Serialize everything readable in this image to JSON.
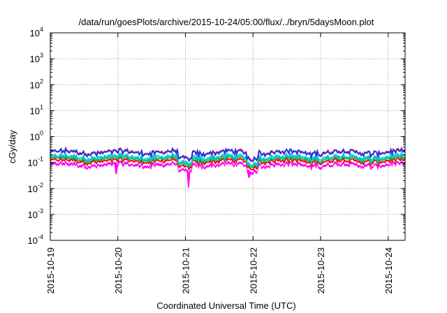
{
  "chart_data": {
    "type": "line",
    "title": "/data/run/goesPlots/archive/2015-10-24/05:00/flux/../bryn/5daysMoon.plot",
    "xlabel": "Coordinated Universal Time (UTC)",
    "ylabel": "cGy/day",
    "y_scale": "log",
    "ylim": [
      0.0001,
      10000
    ],
    "y_ticks": [
      {
        "base": "10",
        "exp": "4",
        "value": 10000
      },
      {
        "base": "10",
        "exp": "3",
        "value": 1000
      },
      {
        "base": "10",
        "exp": "2",
        "value": 100
      },
      {
        "base": "10",
        "exp": "1",
        "value": 10
      },
      {
        "base": "10",
        "exp": "0",
        "value": 1
      },
      {
        "base": "10",
        "exp": "-1",
        "value": 0.1
      },
      {
        "base": "10",
        "exp": "-2",
        "value": 0.01
      },
      {
        "base": "10",
        "exp": "-3",
        "value": 0.001
      },
      {
        "base": "10",
        "exp": "-4",
        "value": 0.0001
      }
    ],
    "x_ticks": [
      "2015-10-19",
      "2015-10-20",
      "2015-10-21",
      "2015-10-22",
      "2015-10-23",
      "2015-10-24"
    ],
    "xlim": [
      "2015-10-19",
      "2015-10-24 06:00"
    ],
    "grid": true,
    "legend": "none",
    "series": [
      {
        "color": "#ff00ff",
        "fill": true,
        "base": 0.085,
        "min_dip": 0.011
      },
      {
        "color": "#ff0000",
        "base": 0.115
      },
      {
        "color": "#00bb66",
        "base": 0.14
      },
      {
        "color": "#00cccc",
        "base": 0.165
      },
      {
        "color": "#ff2222",
        "base": 0.255
      },
      {
        "color": "#2233ee",
        "base": 0.245
      }
    ]
  }
}
